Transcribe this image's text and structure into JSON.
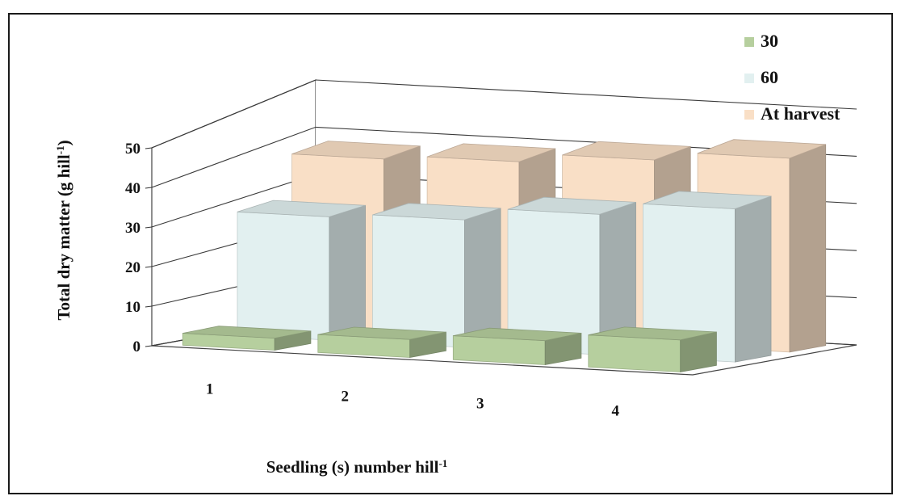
{
  "chart_data": {
    "type": "bar",
    "variant": "3d-clustered-depth",
    "categories": [
      "1",
      "2",
      "3",
      "4"
    ],
    "series": [
      {
        "name": "30",
        "values": [
          3,
          4.5,
          6,
          8
        ],
        "color": "#b6cf9e"
      },
      {
        "name": "60",
        "values": [
          29,
          30,
          33,
          36
        ],
        "color": "#e2f0f0"
      },
      {
        "name": "At harvest",
        "values": [
          38,
          39,
          41,
          43
        ],
        "color": "#f9dfc6"
      }
    ],
    "y_ticks": [
      "0",
      "10",
      "20",
      "30",
      "40",
      "50"
    ],
    "ylim": [
      0,
      50
    ],
    "ylabel": "Total dry matter (g hill",
    "ylabel_sup": "-1",
    "ylabel_end": ")",
    "xlabel": "Seedling (s) number hill",
    "xlabel_sup": "-1",
    "grid": true,
    "legend_position": "top-right"
  }
}
